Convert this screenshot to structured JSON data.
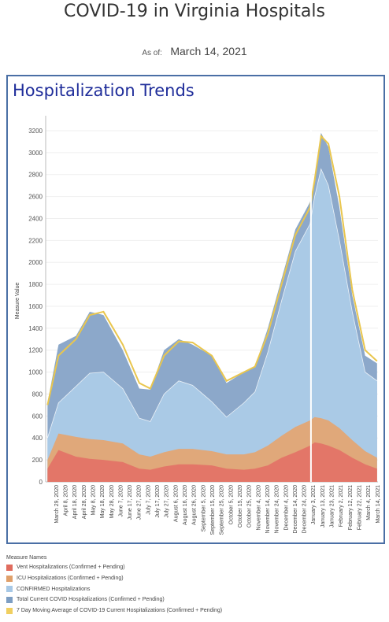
{
  "header": {
    "title": "COVID-19 in Virginia Hospitals",
    "as_of_label": "As of:",
    "as_of_date": "March 14, 2021"
  },
  "panel": {
    "title": "Hospitalization Trends"
  },
  "legend": {
    "title": "Measure Names",
    "items": [
      {
        "label": "Vent Hospitalizations (Confirmed + Pending)",
        "color": "#e06c5e"
      },
      {
        "label": "ICU Hospitalizations (Confirmed + Pending)",
        "color": "#e0a06a"
      },
      {
        "label": "CONFIRMED Hospitalizations",
        "color": "#a7c8e6"
      },
      {
        "label": "Total Current COVID Hospitalizations (Confirmed + Pending)",
        "color": "#7d9ec3"
      },
      {
        "label": "7 Day Moving Average of COVID-19 Current Hospitalizations (Confirmed + Pending)",
        "color": "#f0cf60"
      }
    ]
  },
  "chart_data": {
    "type": "area",
    "ylabel": "Measure Value",
    "xlabel": "",
    "ylim": [
      0,
      3300
    ],
    "y_ticks": [
      0,
      200,
      400,
      600,
      800,
      1000,
      1200,
      1400,
      1600,
      1800,
      2000,
      2200,
      2400,
      2600,
      2800,
      3000,
      3200
    ],
    "x_tick_labels": [
      "March 29, 2020",
      "April 8, 2020",
      "April 18, 2020",
      "April 28, 2020",
      "May 8, 2020",
      "May 18, 2020",
      "May 28, 2020",
      "June 7, 2020",
      "June 17, 2020",
      "June 27, 2020",
      "July 7, 2020",
      "July 17, 2020",
      "July 27, 2020",
      "August 6, 2020",
      "August 16, 2020",
      "August 26, 2020",
      "September 5, 2020",
      "September 15, 2020",
      "September 25, 2020",
      "October 5, 2020",
      "October 15, 2020",
      "October 25, 2020",
      "November 4, 2020",
      "November 14, 2020",
      "November 24, 2020",
      "December 4, 2020",
      "December 14, 2020",
      "December 24, 2020",
      "January 3, 2021",
      "January 13, 2021",
      "January 23, 2021",
      "February 2, 2021",
      "February 12, 2021",
      "February 22, 2021",
      "March 4, 2021",
      "March 14, 2021"
    ],
    "x_dates": [
      "2020-03-20",
      "2020-04-01",
      "2020-04-20",
      "2020-05-05",
      "2020-05-20",
      "2020-06-10",
      "2020-06-28",
      "2020-07-10",
      "2020-07-25",
      "2020-08-10",
      "2020-08-25",
      "2020-09-15",
      "2020-10-01",
      "2020-10-20",
      "2020-11-01",
      "2020-11-15",
      "2020-11-30",
      "2020-12-15",
      "2020-12-31",
      "2021-01-05",
      "2021-01-12",
      "2021-01-20",
      "2021-02-01",
      "2021-02-15",
      "2021-03-01",
      "2021-03-14"
    ],
    "series": [
      {
        "name": "Total Current COVID Hospitalizations (Confirmed + Pending)",
        "values": [
          720,
          1250,
          1330,
          1550,
          1520,
          1200,
          850,
          840,
          1200,
          1300,
          1250,
          1150,
          900,
          1000,
          1050,
          1400,
          1850,
          2300,
          2550,
          2750,
          3180,
          3050,
          2500,
          1700,
          1150,
          1080
        ]
      },
      {
        "name": "CONFIRMED Hospitalizations",
        "values": [
          400,
          720,
          870,
          990,
          1000,
          850,
          580,
          550,
          800,
          920,
          880,
          730,
          590,
          720,
          820,
          1180,
          1650,
          2100,
          2350,
          2600,
          2850,
          2700,
          2200,
          1550,
          1000,
          920
        ]
      },
      {
        "name": "ICU Hospitalizations (Confirmed + Pending)",
        "values": [
          200,
          440,
          410,
          390,
          380,
          350,
          250,
          230,
          270,
          300,
          300,
          280,
          250,
          250,
          270,
          330,
          420,
          500,
          560,
          590,
          580,
          560,
          490,
          380,
          280,
          220
        ]
      },
      {
        "name": "Vent Hospitalizations (Confirmed + Pending)",
        "values": [
          120,
          290,
          230,
          210,
          200,
          180,
          120,
          110,
          140,
          160,
          160,
          150,
          120,
          110,
          120,
          150,
          220,
          270,
          330,
          360,
          350,
          330,
          290,
          220,
          160,
          120
        ]
      },
      {
        "name": "7 Day Moving Average of COVID-19 Current Hospitalizations (Confirmed + Pending)",
        "values": [
          700,
          1150,
          1300,
          1520,
          1550,
          1250,
          900,
          850,
          1150,
          1280,
          1270,
          1150,
          920,
          1000,
          1050,
          1350,
          1800,
          2250,
          2500,
          2750,
          3150,
          3080,
          2600,
          1750,
          1200,
          1100
        ]
      }
    ]
  }
}
